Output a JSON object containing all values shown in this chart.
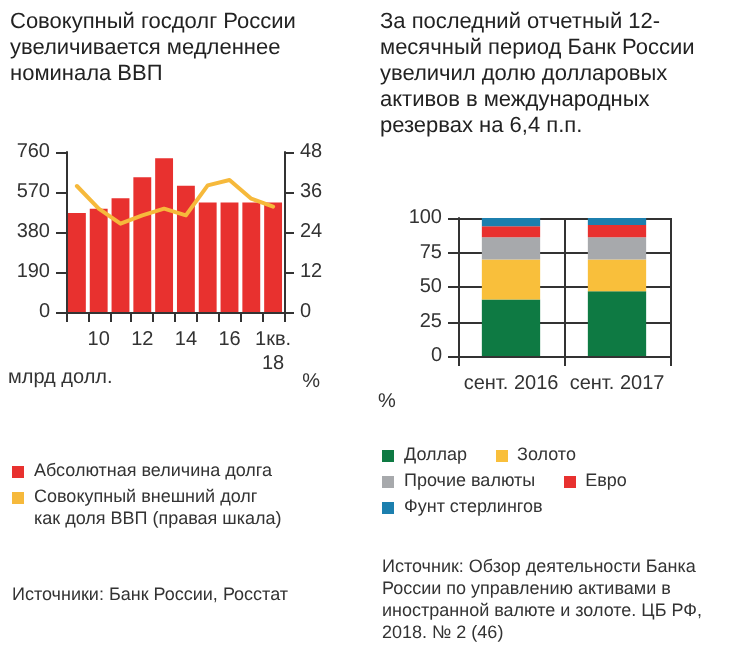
{
  "chart_data": [
    {
      "type": "bar",
      "title": "Совокупный госдолг России увеличивается медленнее номинала ВВП",
      "ylabel": "млрд долл.",
      "y2label": "%",
      "categories": [
        null,
        "10",
        null,
        "12",
        null,
        "14",
        null,
        "16",
        null,
        "1кв.\n18"
      ],
      "series": [
        {
          "name": "Абсолютная величина долга",
          "color": "#e8312f",
          "values": [
            470,
            490,
            540,
            640,
            730,
            600,
            520,
            520,
            520,
            520
          ]
        },
        {
          "name": "Совокупный внешний долг как доля ВВП (правая шкала)",
          "type": "line",
          "axis": "y2",
          "color": "#f6b93b",
          "values": [
            37.8,
            31,
            26.5,
            29,
            31,
            29,
            38,
            39.6,
            34,
            31.6
          ]
        }
      ],
      "ylim": [
        0,
        760
      ],
      "yticks": [
        0,
        190,
        380,
        570,
        760
      ],
      "y2lim": [
        0,
        48
      ],
      "y2ticks": [
        0,
        12,
        24,
        36,
        48
      ],
      "legend": "bottom",
      "marker": "none",
      "line_style": "solid",
      "annotations": [
        "Источники: Банк России, Росстат"
      ]
    },
    {
      "type": "bar",
      "title": "За последний отчетный 12-месячный период Банк России увеличил долю долларовых активов в международных резервах на 6,4 п.п.",
      "ylabel": "%",
      "categories": [
        "сент. 2016",
        "сент. 2017"
      ],
      "stacked": true,
      "series": [
        {
          "name": "Доллар",
          "color": "#0e7a43",
          "values": [
            41,
            47
          ]
        },
        {
          "name": "Золото",
          "color": "#f9bf3b",
          "values": [
            29,
            23
          ]
        },
        {
          "name": "Прочие валюты",
          "color": "#a7a9ac",
          "values": [
            16,
            16
          ]
        },
        {
          "name": "Евро",
          "color": "#e8312f",
          "values": [
            8,
            9
          ]
        },
        {
          "name": "Фунт стерлингов",
          "color": "#1c7fae",
          "values": [
            6,
            5
          ]
        }
      ],
      "ylim": [
        0,
        100
      ],
      "yticks": [
        0,
        25,
        50,
        75,
        100
      ],
      "grid": true,
      "legend": "bottom",
      "annotations": [
        "Источник: Обзор деятельности Банка России по управлению активами в иностранной валюте и золоте. ЦБ РФ, 2018. № 2 (46)"
      ]
    }
  ]
}
